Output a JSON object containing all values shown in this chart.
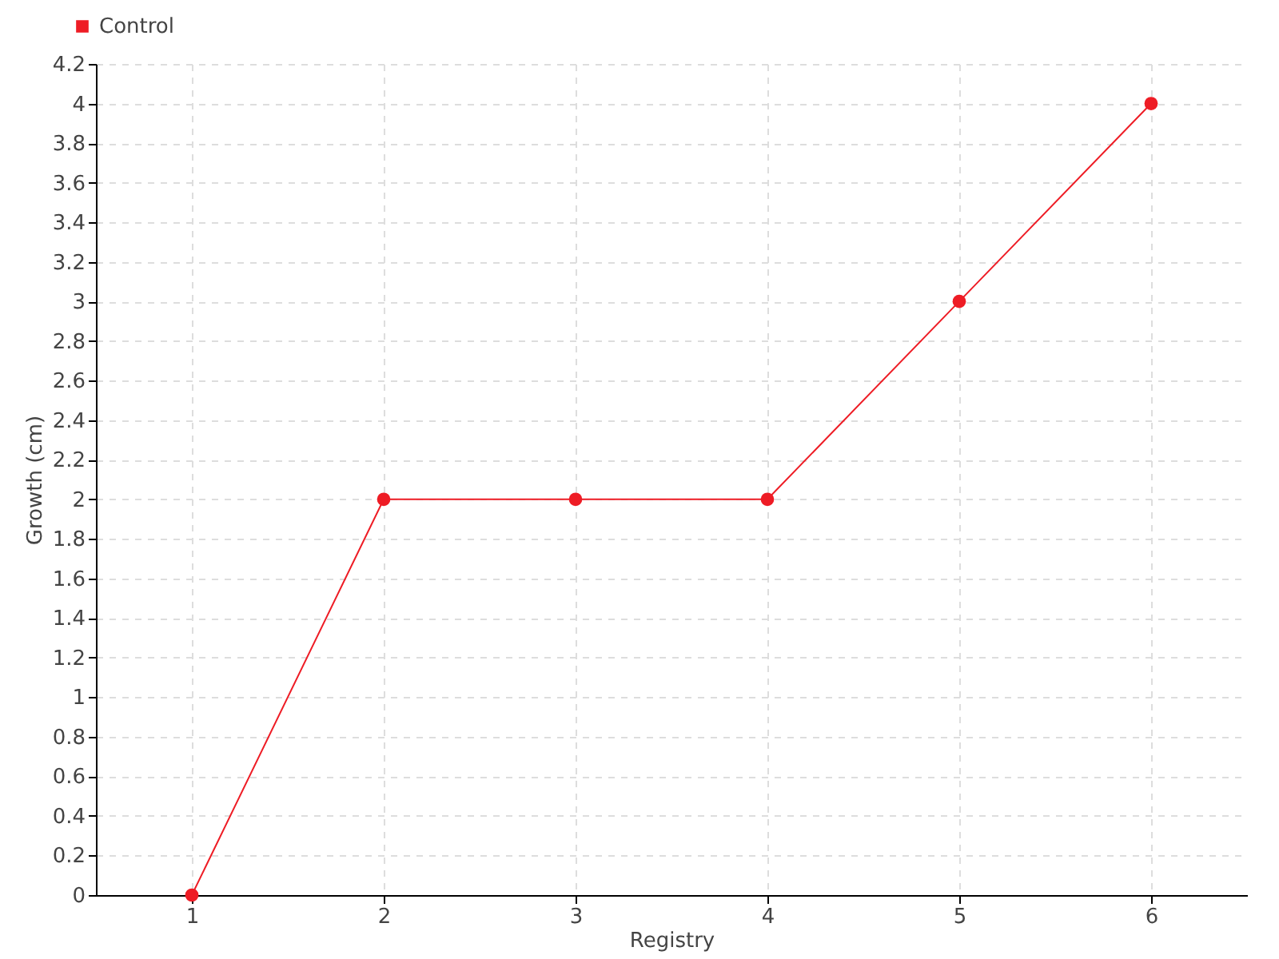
{
  "chart_data": {
    "type": "line",
    "xlabel": "Registry",
    "ylabel": "Growth (cm)",
    "categories": [
      "1",
      "2",
      "3",
      "4",
      "5",
      "6"
    ],
    "series": [
      {
        "name": "Control",
        "color": "#ee1c25",
        "values": [
          0,
          2,
          2,
          2,
          3,
          4
        ]
      }
    ],
    "ylim": [
      0,
      4.2
    ],
    "yticks": [
      0,
      0.2,
      0.4,
      0.6,
      0.8,
      1,
      1.2,
      1.4,
      1.6,
      1.8,
      2,
      2.2,
      2.4,
      2.6,
      2.8,
      3,
      3.2,
      3.4,
      3.6,
      3.8,
      4,
      4.2
    ],
    "grid": true,
    "legend": "top left",
    "marker": "circle",
    "line_style": "solid"
  }
}
